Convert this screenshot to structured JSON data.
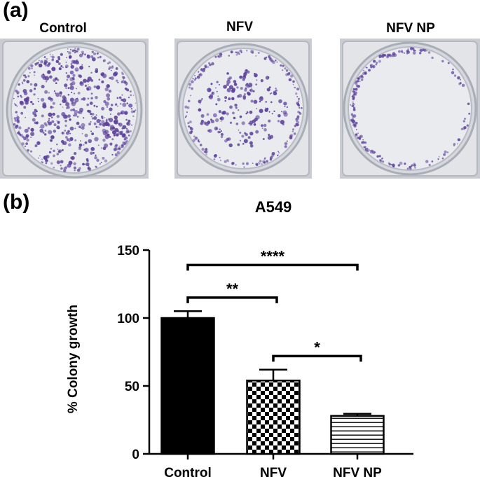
{
  "panel_a": {
    "label": "(a)",
    "plates": [
      {
        "title": "Control"
      },
      {
        "title": "NFV"
      },
      {
        "title": "NFV NP"
      }
    ]
  },
  "panel_b": {
    "label": "(b)"
  },
  "colors": {
    "colony": "#5b3f9a",
    "plate_bg": "#d8dbe0",
    "bar_edge": "#000000"
  },
  "chart_data": {
    "type": "bar",
    "title": "A549",
    "ylabel": "% Colony growth",
    "xlabel": "",
    "categories": [
      "Control",
      "NFV",
      "NFV NP"
    ],
    "values": [
      100,
      54,
      28
    ],
    "errors": [
      5,
      8,
      1.5
    ],
    "fills": [
      "solid",
      "checker",
      "horizontal-stripes"
    ],
    "ylim": [
      0,
      150
    ],
    "yticks": [
      0,
      50,
      100,
      150
    ],
    "grid": false,
    "significance": [
      {
        "from": 0,
        "to": 1,
        "label": "**",
        "y": 115
      },
      {
        "from": 0,
        "to": 2,
        "label": "****",
        "y": 139
      },
      {
        "from": 1,
        "to": 2,
        "label": "*",
        "y": 72
      }
    ]
  }
}
